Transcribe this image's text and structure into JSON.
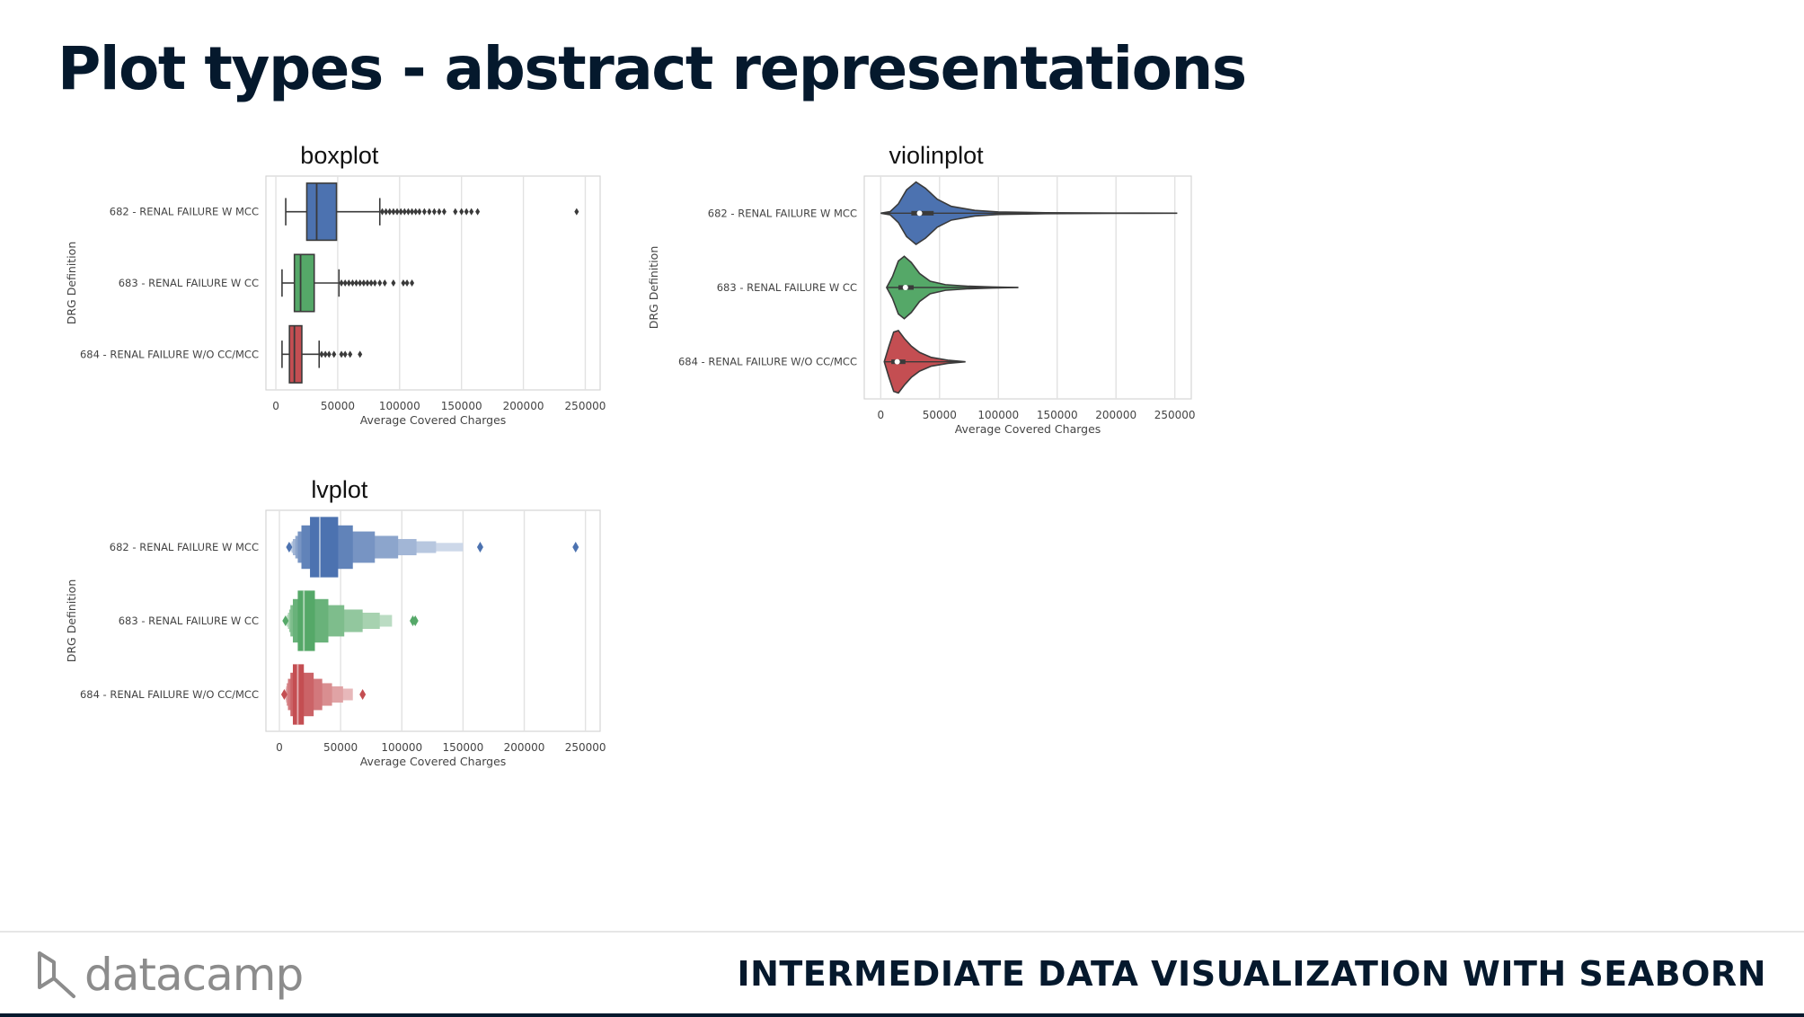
{
  "slide": {
    "title": "Plot types - abstract representations",
    "course": "INTERMEDIATE DATA VISUALIZATION WITH SEABORN",
    "logo_text": "datacamp"
  },
  "colors": {
    "blue": "#4c72b0",
    "green": "#55a868",
    "red": "#c44e52",
    "navy": "#05192d"
  },
  "chart_data": [
    {
      "type": "box",
      "title": "boxplot",
      "xlabel": "Average Covered Charges",
      "ylabel": "DRG Definition",
      "xlim": [
        -8000,
        262000
      ],
      "xticks": [
        0,
        50000,
        100000,
        150000,
        200000,
        250000
      ],
      "grid": true,
      "categories": [
        "682 - RENAL FAILURE W MCC",
        "683 - RENAL FAILURE W CC",
        "684 - RENAL FAILURE W/O CC/MCC"
      ],
      "series": [
        {
          "name": "682 - RENAL FAILURE W MCC",
          "whisker_low": 8000,
          "q1": 25000,
          "median": 33000,
          "q3": 49000,
          "whisker_high": 84000,
          "outliers": [
            86000,
            89000,
            92000,
            95000,
            98000,
            101000,
            104000,
            107000,
            110000,
            113000,
            116000,
            120000,
            124000,
            128000,
            132000,
            136000,
            145000,
            150000,
            154000,
            158000,
            163000,
            243000
          ]
        },
        {
          "name": "683 - RENAL FAILURE W CC",
          "whisker_low": 5000,
          "q1": 15000,
          "median": 20000,
          "q3": 31000,
          "whisker_high": 51000,
          "outliers": [
            53000,
            56000,
            59000,
            62000,
            65000,
            68000,
            71000,
            74000,
            77000,
            80000,
            84000,
            88000,
            95000,
            103000,
            106000,
            110000
          ]
        },
        {
          "name": "684 - RENAL FAILURE W/O CC/MCC",
          "whisker_low": 5000,
          "q1": 11000,
          "median": 15000,
          "q3": 21000,
          "whisker_high": 35000,
          "outliers": [
            37000,
            40000,
            43000,
            47000,
            53000,
            56000,
            60000,
            68000
          ]
        }
      ]
    },
    {
      "type": "violin",
      "title": "violinplot",
      "xlabel": "Average Covered Charges",
      "ylabel": "DRG Definition",
      "xlim": [
        -14000,
        264000
      ],
      "xticks": [
        0,
        50000,
        100000,
        150000,
        200000,
        250000
      ],
      "grid": true,
      "categories": [
        "682 - RENAL FAILURE W MCC",
        "683 - RENAL FAILURE W CC",
        "684 - RENAL FAILURE W/O CC/MCC"
      ],
      "series": [
        {
          "name": "682 - RENAL FAILURE W MCC",
          "min": 0,
          "max": 252000,
          "q1": 26000,
          "median": 33000,
          "q3": 45000,
          "density": [
            [
              0,
              0
            ],
            [
              8000,
              0.05
            ],
            [
              15000,
              0.3
            ],
            [
              22000,
              0.75
            ],
            [
              30000,
              1.0
            ],
            [
              38000,
              0.8
            ],
            [
              48000,
              0.45
            ],
            [
              60000,
              0.22
            ],
            [
              80000,
              0.09
            ],
            [
              100000,
              0.04
            ],
            [
              140000,
              0.015
            ],
            [
              200000,
              0.005
            ],
            [
              252000,
              0
            ]
          ]
        },
        {
          "name": "683 - RENAL FAILURE W CC",
          "min": 5000,
          "max": 117000,
          "q1": 15000,
          "median": 21000,
          "q3": 28000,
          "density": [
            [
              5000,
              0
            ],
            [
              10000,
              0.35
            ],
            [
              15000,
              0.85
            ],
            [
              20000,
              1.0
            ],
            [
              26000,
              0.8
            ],
            [
              33000,
              0.45
            ],
            [
              42000,
              0.2
            ],
            [
              55000,
              0.09
            ],
            [
              75000,
              0.04
            ],
            [
              95000,
              0.015
            ],
            [
              117000,
              0
            ]
          ]
        },
        {
          "name": "684 - RENAL FAILURE W/O CC/MCC",
          "min": 3000,
          "max": 72000,
          "q1": 9000,
          "median": 14000,
          "q3": 21000,
          "density": [
            [
              3000,
              0
            ],
            [
              7000,
              0.5
            ],
            [
              11000,
              0.95
            ],
            [
              15000,
              1.0
            ],
            [
              20000,
              0.75
            ],
            [
              26000,
              0.5
            ],
            [
              33000,
              0.3
            ],
            [
              43000,
              0.14
            ],
            [
              57000,
              0.05
            ],
            [
              72000,
              0
            ]
          ]
        }
      ]
    },
    {
      "type": "lv",
      "title": "lvplot",
      "xlabel": "Average Covered Charges",
      "ylabel": "DRG Definition",
      "xlim": [
        -11000,
        262000
      ],
      "xticks": [
        0,
        50000,
        100000,
        150000,
        200000,
        250000
      ],
      "grid": true,
      "categories": [
        "682 - RENAL FAILURE W MCC",
        "683 - RENAL FAILURE W CC",
        "684 - RENAL FAILURE W/O CC/MCC"
      ],
      "series": [
        {
          "name": "682 - RENAL FAILURE W MCC",
          "median": 33000,
          "levels": [
            [
              25000,
              48000
            ],
            [
              18000,
              60000
            ],
            [
              15000,
              78000
            ],
            [
              13000,
              97000
            ],
            [
              11000,
              112000
            ],
            [
              10000,
              128000
            ],
            [
              9000,
              150000
            ]
          ],
          "outliers": [
            8000,
            164000,
            242000
          ]
        },
        {
          "name": "683 - RENAL FAILURE W CC",
          "median": 20000,
          "levels": [
            [
              15000,
              29000
            ],
            [
              11000,
              40000
            ],
            [
              9000,
              53000
            ],
            [
              8000,
              68000
            ],
            [
              7000,
              82000
            ],
            [
              6000,
              92000
            ]
          ],
          "outliers": [
            5000,
            109000,
            111000
          ]
        },
        {
          "name": "684 - RENAL FAILURE W/O CC/MCC",
          "median": 15000,
          "levels": [
            [
              11000,
              20000
            ],
            [
              9000,
              28000
            ],
            [
              7000,
              35000
            ],
            [
              6000,
              43000
            ],
            [
              5500,
              52000
            ],
            [
              5000,
              60000
            ]
          ],
          "outliers": [
            4000,
            68000
          ]
        }
      ]
    }
  ]
}
